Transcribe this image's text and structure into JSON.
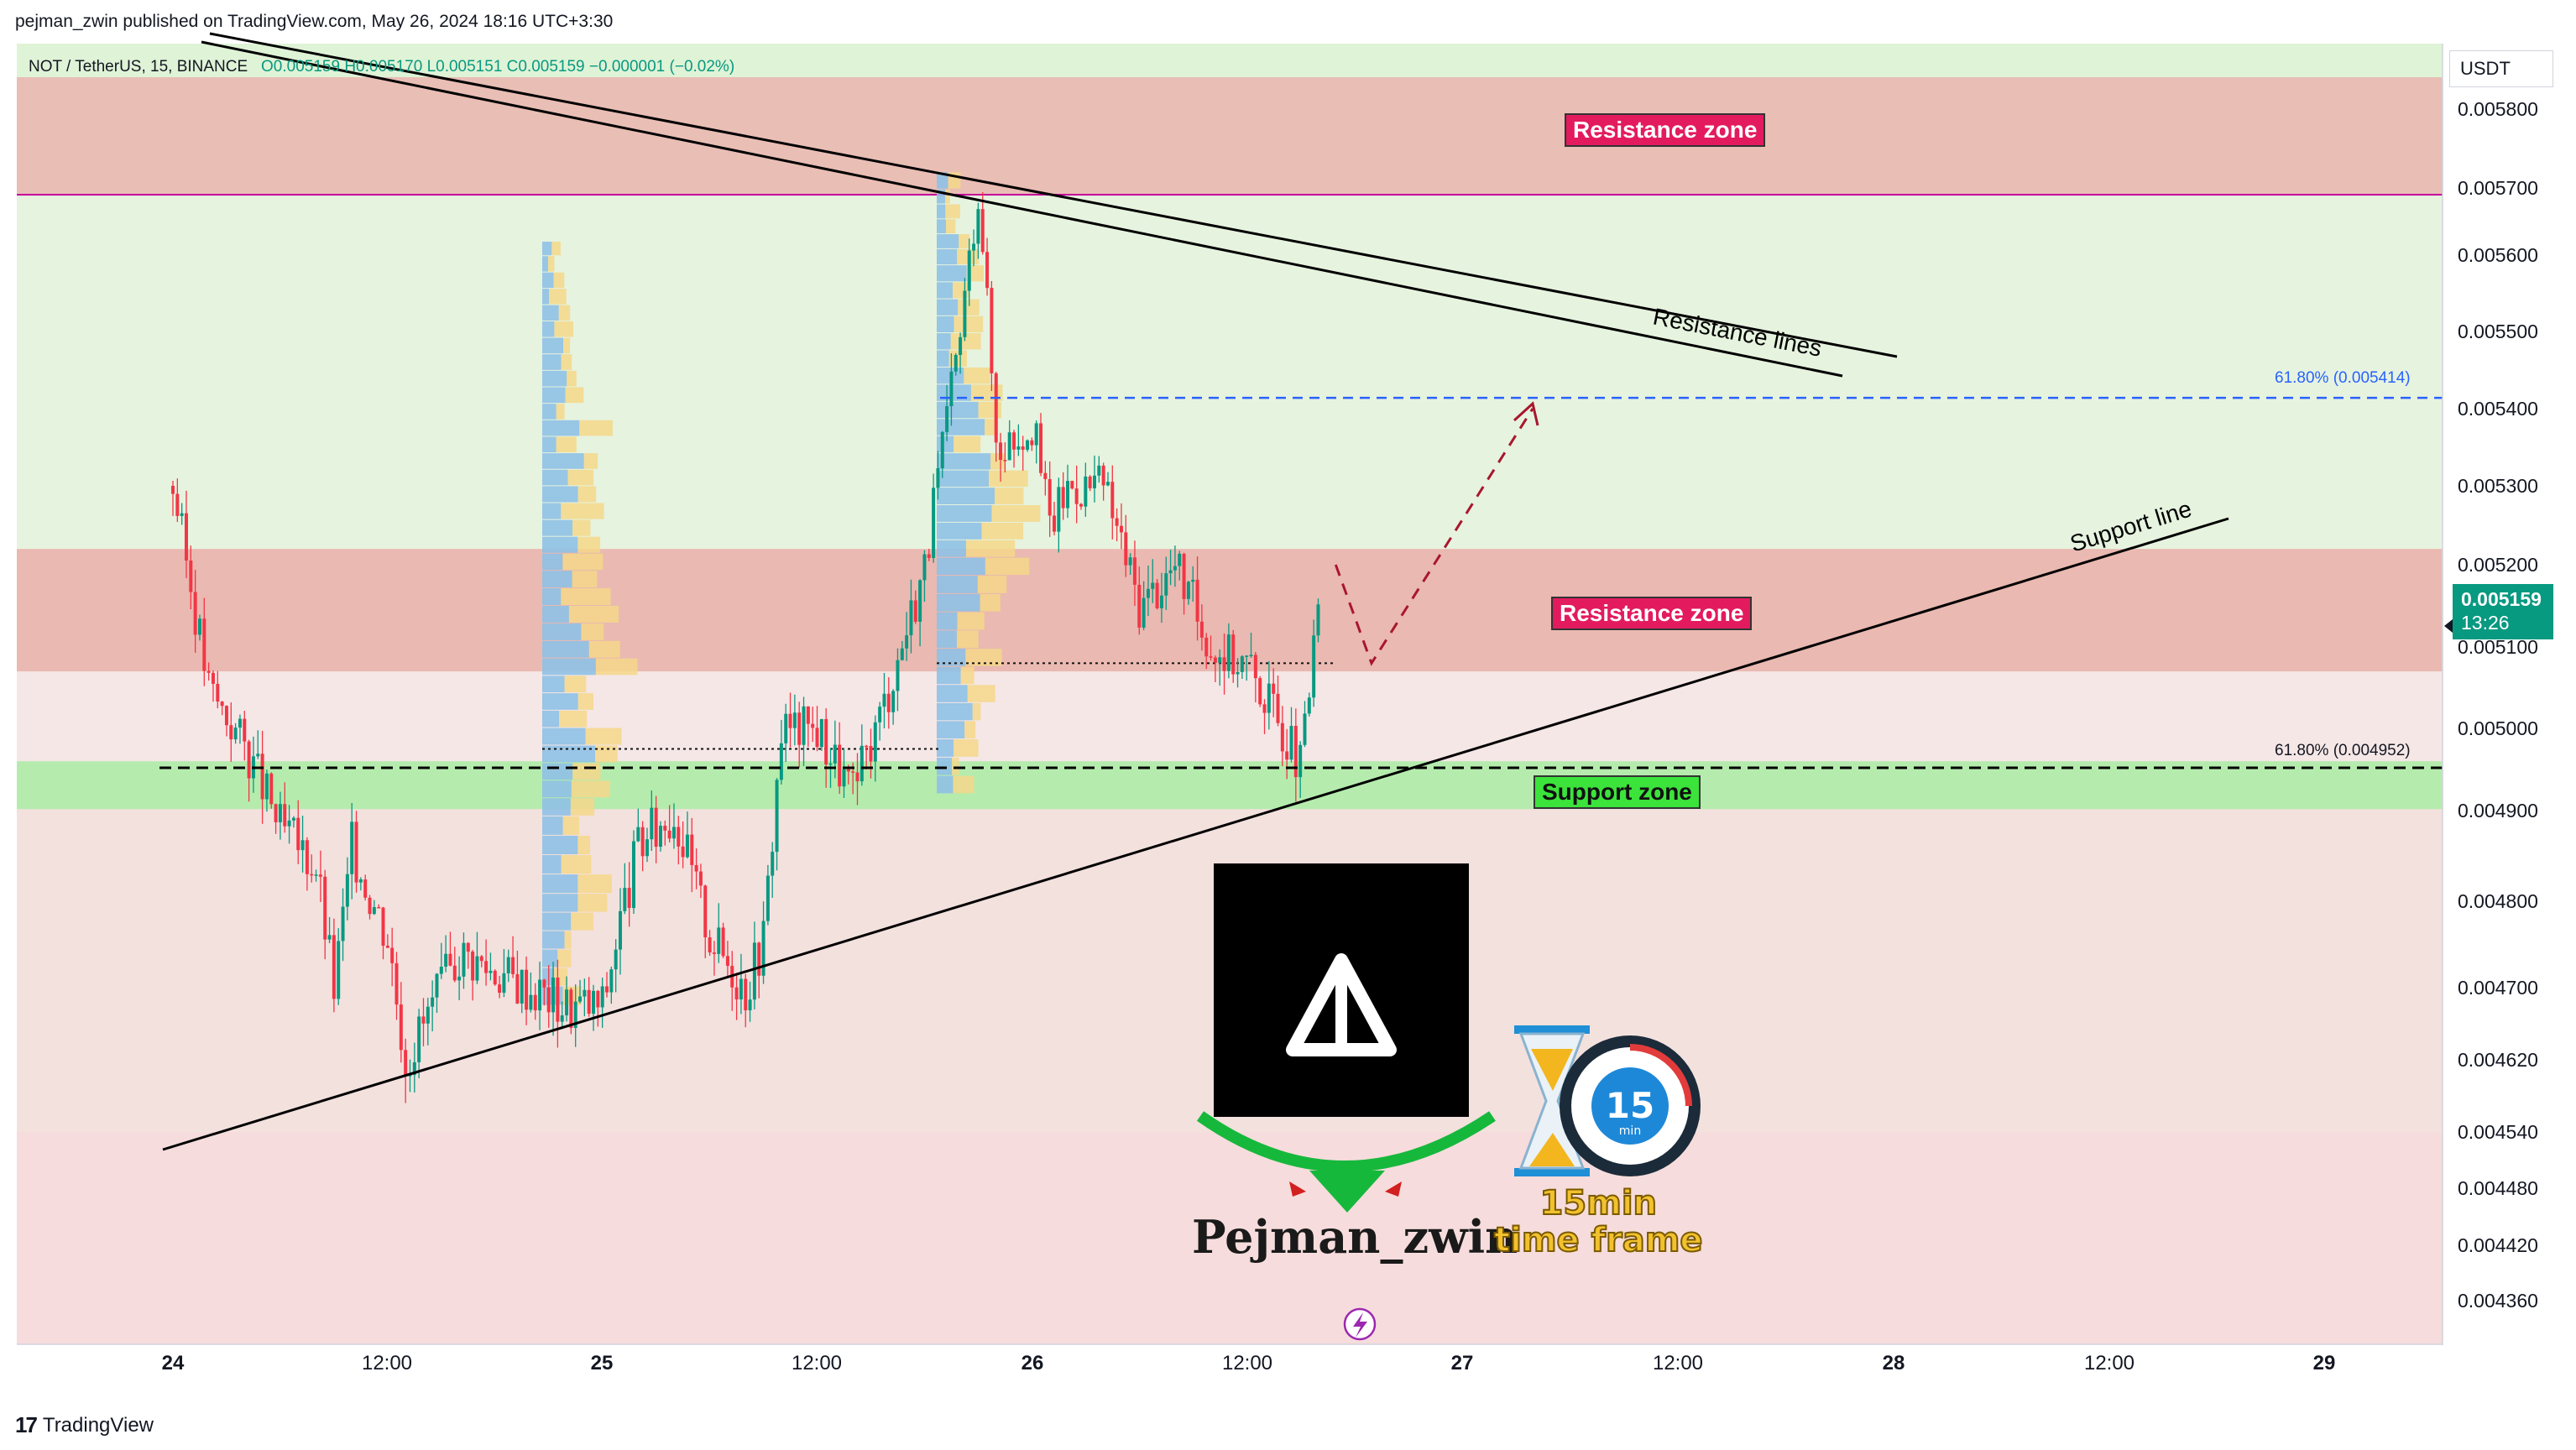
{
  "header": {
    "published": "pejman_zwin published on TradingView.com, May 26, 2024 18:16 UTC+3:30"
  },
  "symbol_line": {
    "symbol": "NOT / TetherUS, 15, BINANCE",
    "ohlc": "O0.005159  H0.005170  L0.005151  C0.005159  −0.000001 (−0.02%)"
  },
  "currency": "USDT",
  "last_price": {
    "price": "0.005159",
    "countdown": "13:26"
  },
  "footer": {
    "logo": "17",
    "brand": "TradingView"
  },
  "annotations": {
    "resistance_zone_top": "Resistance zone",
    "resistance_zone_mid": "Resistance zone",
    "support_zone": "Support zone",
    "resistance_lines": "Resistance lines",
    "support_line": "Support line",
    "fib_upper": "61.80% (0.005414)",
    "fib_lower": "61.80% (0.004952)",
    "author": "Pejman_zwin",
    "timeframe_line1": "15min",
    "timeframe_line2": "time frame",
    "clock_number": "15",
    "clock_unit": "min"
  },
  "colors": {
    "bull": "#089981",
    "bear": "#f23645",
    "resistance_zone": "#e9b8b0",
    "support_zone": "#b5ecae",
    "fib_line": "#2962ff",
    "zone_label_red": "#e31b5e",
    "zone_label_green": "#3be33b"
  },
  "chart_data": {
    "type": "candlestick",
    "title": "NOT / TetherUS, 15, BINANCE",
    "y_ticks": [
      "0.005800",
      "0.005700",
      "0.005600",
      "0.005500",
      "0.005400",
      "0.005300",
      "0.005200",
      "0.005100",
      "0.005000",
      "0.004900",
      "0.004800",
      "0.004700",
      "0.004620",
      "0.004540",
      "0.004480",
      "0.004420",
      "0.004360"
    ],
    "x_ticks": [
      "24",
      "12:00",
      "25",
      "12:00",
      "26",
      "12:00",
      "27",
      "12:00",
      "28",
      "12:00",
      "29"
    ],
    "ylim": [
      0.00432,
      0.00584
    ],
    "close_path": [
      [
        "24 00:00",
        0.0053
      ],
      [
        "24 02:00",
        0.00505
      ],
      [
        "24 04:00",
        0.00498
      ],
      [
        "24 06:00",
        0.00488
      ],
      [
        "24 08:00",
        0.00484
      ],
      [
        "24 09:00",
        0.0047
      ],
      [
        "24 10:00",
        0.00486
      ],
      [
        "24 12:00",
        0.00476
      ],
      [
        "24 13:00",
        0.00462
      ],
      [
        "24 16:00",
        0.00474
      ],
      [
        "24 20:00",
        0.0047
      ],
      [
        "24 22:00",
        0.00468
      ],
      [
        "25 00:00",
        0.00468
      ],
      [
        "25 01:00",
        0.00478
      ],
      [
        "25 02:00",
        0.00486
      ],
      [
        "25 04:00",
        0.0049
      ],
      [
        "25 06:00",
        0.00476
      ],
      [
        "25 08:00",
        0.0047
      ],
      [
        "25 09:00",
        0.00476
      ],
      [
        "25 10:00",
        0.005
      ],
      [
        "25 12:00",
        0.005
      ],
      [
        "25 14:00",
        0.00492
      ],
      [
        "25 16:00",
        0.00505
      ],
      [
        "25 18:00",
        0.0052
      ],
      [
        "25 20:00",
        0.0055
      ],
      [
        "25 21:00",
        0.0057
      ],
      [
        "25 22:00",
        0.00535
      ],
      [
        "26 00:00",
        0.00538
      ],
      [
        "26 01:00",
        0.00525
      ],
      [
        "26 02:00",
        0.0053
      ],
      [
        "26 04:00",
        0.0053
      ],
      [
        "26 06:00",
        0.00515
      ],
      [
        "26 08:00",
        0.0052
      ],
      [
        "26 10:00",
        0.0051
      ],
      [
        "26 12:00",
        0.00508
      ],
      [
        "26 14:00",
        0.005
      ],
      [
        "26 15:00",
        0.00495
      ],
      [
        "26 16:00",
        0.00515
      ]
    ],
    "levels": {
      "resistance_zone_upper": [
        0.00569,
        0.00584
      ],
      "resistance_zone_lower": [
        0.00507,
        0.00522
      ],
      "support_zone": [
        0.00491,
        0.00496
      ],
      "fib_upper": 0.005414,
      "fib_lower": 0.004952,
      "poc": 0.00508,
      "poc_left": 0.004975
    },
    "trendlines": {
      "support_line": [
        [
          "24 00:00",
          0.00453
        ],
        [
          "28 08:00",
          0.00525
        ]
      ],
      "resistance_line_1": [
        [
          "24 00:00",
          0.00582
        ],
        [
          "28 00:00",
          0.00545
        ]
      ],
      "resistance_line_2": [
        [
          "24 00:00",
          0.00585
        ],
        [
          "28 00:00",
          0.00548
        ]
      ]
    },
    "projection": [
      [
        "26 16:00",
        0.0052
      ],
      [
        "26 18:00",
        0.00508
      ],
      [
        "27 03:00",
        0.0054
      ]
    ]
  }
}
